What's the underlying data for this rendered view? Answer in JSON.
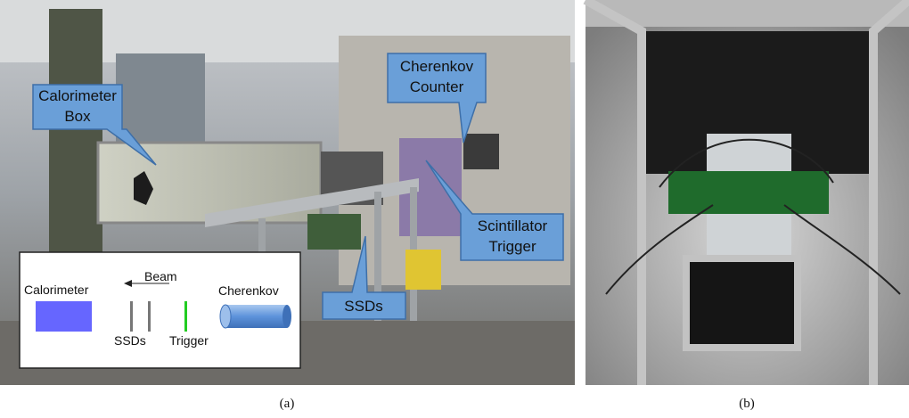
{
  "panel_a": {
    "caption": "(a)",
    "callouts": [
      {
        "lines": [
          "Calorimeter",
          "Box"
        ]
      },
      {
        "lines": [
          "Cherenkov",
          "Counter"
        ]
      },
      {
        "lines": [
          "Scintillator",
          "Trigger"
        ]
      },
      {
        "lines": [
          "SSDs"
        ]
      }
    ],
    "inset": {
      "calorimeter": "Calorimeter",
      "beam": "Beam",
      "ssds": "SSDs",
      "trigger": "Trigger",
      "cherenkov": "Cherenkov"
    }
  },
  "panel_b": {
    "caption": "(b)"
  }
}
